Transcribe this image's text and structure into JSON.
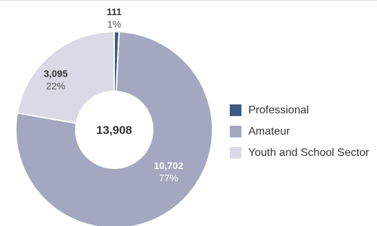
{
  "chart_data": {
    "type": "pie",
    "variant": "donut",
    "total": "13,908",
    "slices": [
      {
        "name": "Professional",
        "value": 111,
        "value_label": "111",
        "percent_label": "1%",
        "color": "#3d5a80"
      },
      {
        "name": "Amateur",
        "value": 10702,
        "value_label": "10,702",
        "percent_label": "77%",
        "color": "#a3a8c0"
      },
      {
        "name": "Youth and School Sector",
        "value": 3095,
        "value_label": "3,095",
        "percent_label": "22%",
        "color": "#d9dae6"
      }
    ],
    "legend": {
      "placement": "right"
    }
  }
}
